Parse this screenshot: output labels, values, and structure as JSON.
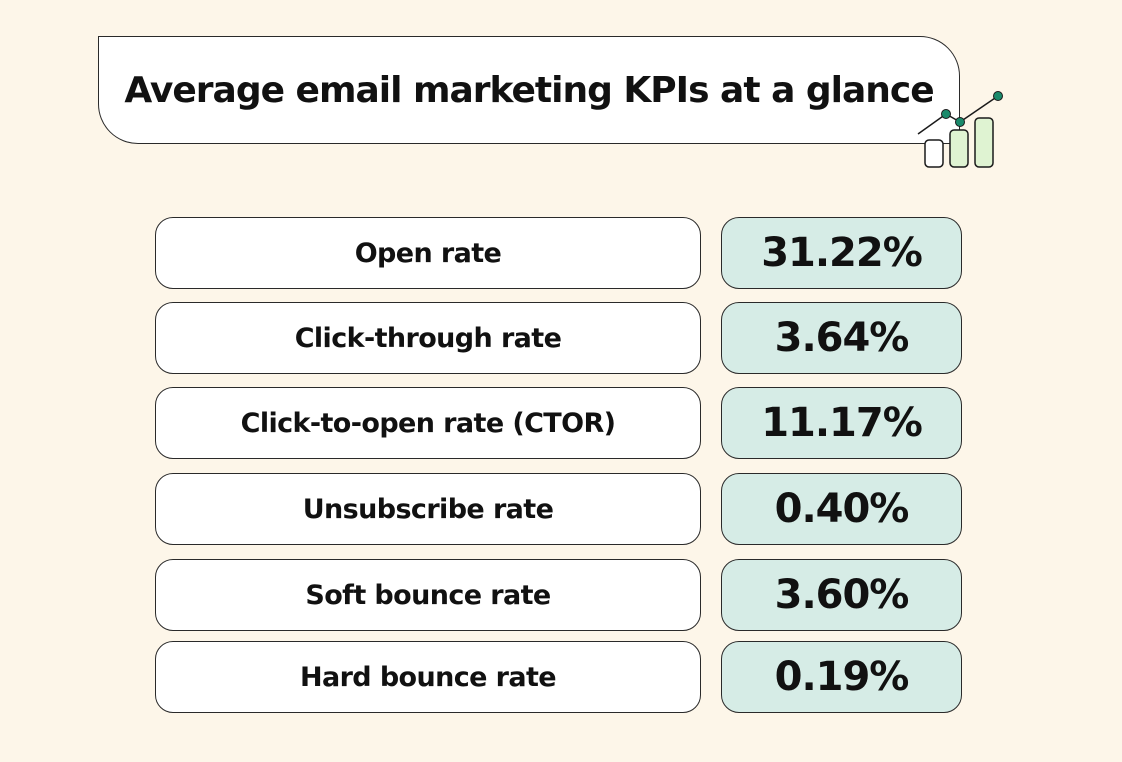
{
  "title": "Average email marketing KPIs at a glance",
  "decoration": {
    "icon": "bar-chart-growth-icon",
    "accent": "#1a8a6b",
    "bar_fill": "#dff3d2"
  },
  "colors": {
    "background": "#fdf6e9",
    "label_fill": "#ffffff",
    "value_fill": "#d6ece6",
    "text": "#111111"
  },
  "chart_data": {
    "type": "table",
    "title": "Average email marketing KPIs at a glance",
    "rows": [
      {
        "label": "Open rate",
        "value": "31.22%"
      },
      {
        "label": "Click-through rate",
        "value": "3.64%"
      },
      {
        "label": "Click-to-open rate (CTOR)",
        "value": "11.17%"
      },
      {
        "label": "Unsubscribe rate",
        "value": "0.40%"
      },
      {
        "label": "Soft bounce rate",
        "value": "3.60%"
      },
      {
        "label": "Hard bounce rate",
        "value": "0.19%"
      }
    ]
  }
}
